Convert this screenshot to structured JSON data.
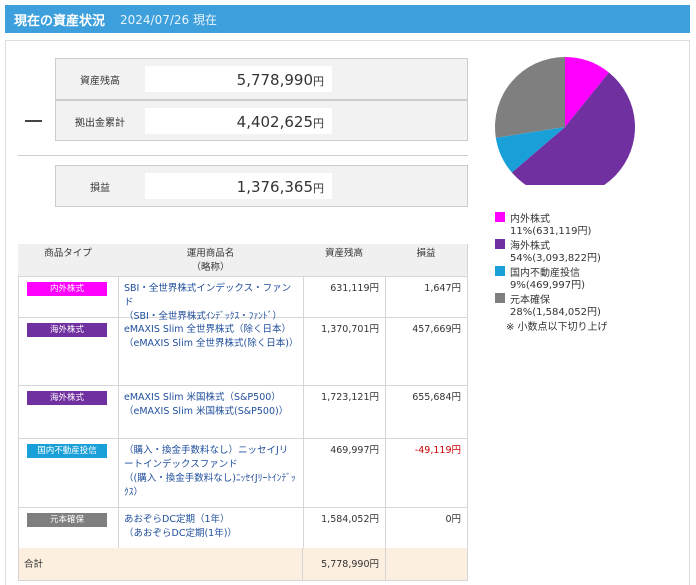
{
  "header": {
    "title": "現在の資産状況",
    "date": "2024/07/26 現在"
  },
  "summary": {
    "items": [
      {
        "label": "資産残高",
        "value": "5,778,990",
        "unit": "円"
      },
      {
        "label": "拠出金累計",
        "value": "4,402,625",
        "unit": "円"
      },
      {
        "label": "損益",
        "value": "1,376,365",
        "unit": "円"
      }
    ]
  },
  "table": {
    "columns": [
      [
        "商品タイプ"
      ],
      [
        "運用商品名",
        "（略称）"
      ],
      [
        "資産残高"
      ],
      [
        "損益"
      ]
    ],
    "rows": [
      {
        "type": "内外株式",
        "type_color": "#ff00ff",
        "name": [
          "SBI・全世界株式インデックス・ファンド",
          "（SBI・全世界株式ｲﾝﾃﾞｯｸｽ・ﾌｧﾝﾄﾞ）"
        ],
        "balance": "631,119円",
        "pl": "1,647円",
        "pl_color": "#333333"
      },
      {
        "type": "海外株式",
        "type_color": "#7030a0",
        "name": [
          "eMAXIS Slim 全世界株式（除く日本）",
          "（eMAXIS Slim 全世界株式(除く日本)）"
        ],
        "balance": "1,370,701円",
        "pl": "457,669円",
        "pl_color": "#333333"
      },
      {
        "type": "海外株式",
        "type_color": "#7030a0",
        "name": [
          "eMAXIS Slim 米国株式（S&P500）",
          "（eMAXIS Slim 米国株式(S&P500)）"
        ],
        "balance": "1,723,121円",
        "pl": "655,684円",
        "pl_color": "#333333"
      },
      {
        "type": "国内不動産投信",
        "type_color": "#1aa0d8",
        "name": [
          "（購入・換金手数料なし）ニッセイJリートインデックスファンド",
          "（(購入・換金手数料なし)ﾆｯｾｲJﾘｰﾄｲﾝﾃﾞｯｸｽ）"
        ],
        "balance": "469,997円",
        "pl": "-49,119円",
        "pl_color": "#cc0000"
      },
      {
        "type": "元本確保",
        "type_color": "#7f7f7f",
        "name": [
          "あおぞらDC定期（1年）",
          "（あおぞらDC定期(1年)）"
        ],
        "balance": "1,584,052円",
        "pl": "0円",
        "pl_color": "#333333"
      }
    ],
    "total": {
      "label": "合計",
      "balance": "5,778,990円"
    }
  },
  "chart_data": {
    "type": "pie",
    "categories": [
      "内外株式",
      "海外株式",
      "国内不動産投信",
      "元本確保"
    ],
    "values": [
      11,
      54,
      9,
      28
    ],
    "value_labels": [
      "11%(631,119円)",
      "54%(3,093,822円)",
      "9%(469,997円)",
      "28%(1,584,052円)"
    ],
    "colors": [
      "#ff00ff",
      "#7030a0",
      "#1aa0d8",
      "#7f7f7f"
    ],
    "note": "※ 小数点以下切り上げ"
  }
}
